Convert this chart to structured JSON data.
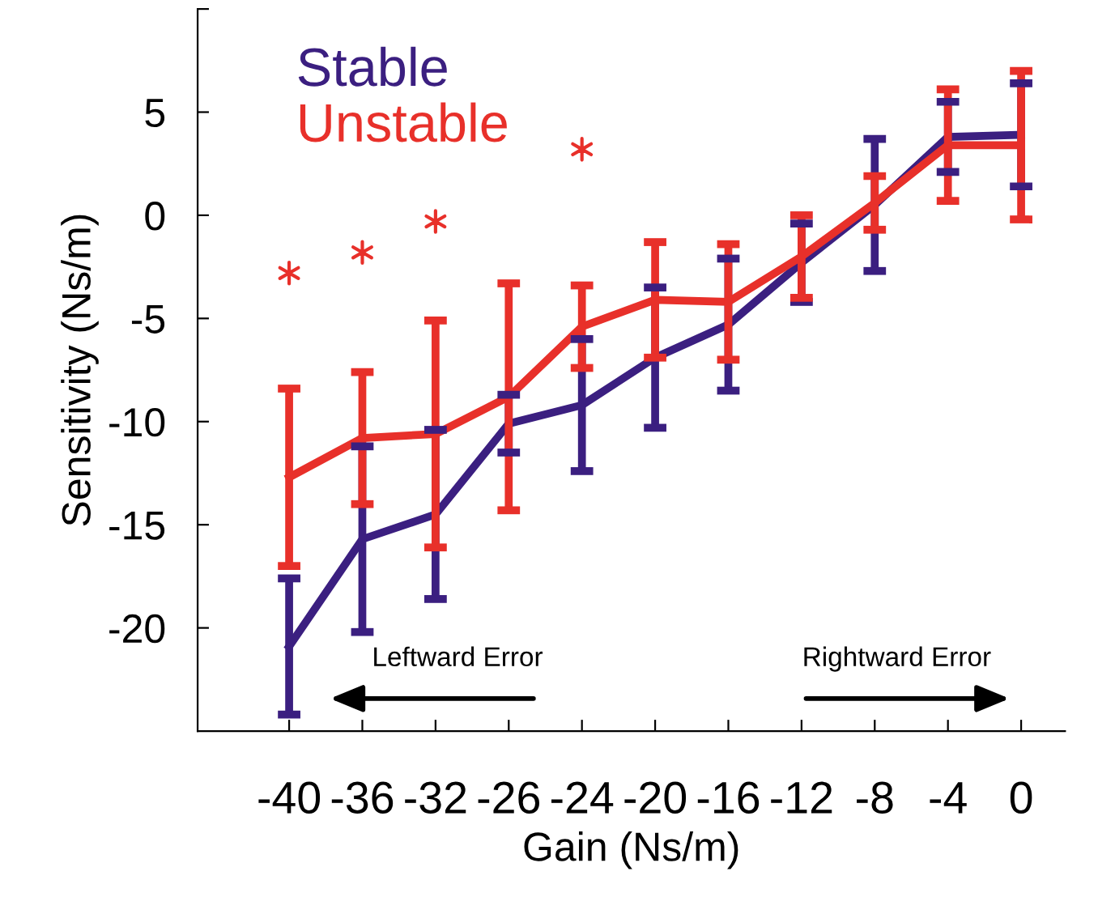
{
  "chart_data": {
    "type": "line",
    "xlabel": "Gain (Ns/m)",
    "ylabel": "Sensitivity (Ns/m)",
    "categories": [
      "-40",
      "-36",
      "-32",
      "-26",
      "-24",
      "-20",
      "-16",
      "-12",
      "-8",
      "-4",
      "0"
    ],
    "series": [
      {
        "name": "Stable",
        "color": "#3b1f80",
        "values": [
          -20.9,
          -15.7,
          -14.5,
          -10.1,
          -9.2,
          -6.9,
          -5.3,
          -2.3,
          0.5,
          3.8,
          3.9
        ],
        "errors": [
          3.3,
          4.5,
          4.1,
          1.4,
          3.2,
          3.4,
          3.2,
          1.9,
          3.2,
          1.7,
          2.5
        ]
      },
      {
        "name": "Unstable",
        "color": "#e8302a",
        "values": [
          -12.7,
          -10.8,
          -10.6,
          -8.8,
          -5.4,
          -4.1,
          -4.2,
          -2.0,
          0.6,
          3.4,
          3.4
        ],
        "errors": [
          4.3,
          3.2,
          5.5,
          5.5,
          2.0,
          2.8,
          2.8,
          2.0,
          1.3,
          2.7,
          3.6
        ]
      },
      {
        "type": "scatter",
        "marker": "cross",
        "color": "#e8302a",
        "x": [
          "-40",
          "-36",
          "-32",
          "-24"
        ],
        "values": [
          -2.8,
          -1.8,
          -0.3,
          3.2
        ]
      }
    ],
    "ylim": [
      -25,
      10
    ],
    "yticks": [
      -20,
      -15,
      -10,
      -5,
      0,
      5,
      {
        "value": 10,
        "label": null
      }
    ],
    "annotations": [
      "Leftward Error",
      "Rightward Error"
    ],
    "legend": "top left",
    "grid": false
  }
}
